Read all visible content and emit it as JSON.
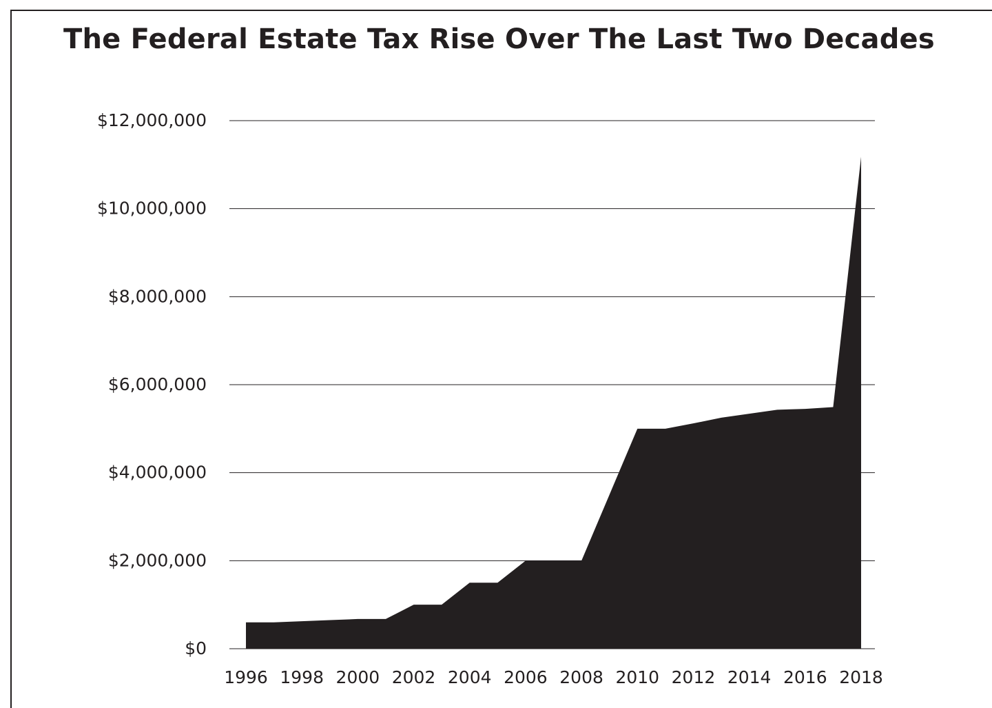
{
  "chart_data": {
    "type": "area",
    "title": "The Federal Estate Tax Rise Over The Last Two Decades",
    "xlabel": "",
    "ylabel": "",
    "x": [
      1996,
      1997,
      1998,
      1999,
      2000,
      2001,
      2002,
      2003,
      2004,
      2005,
      2006,
      2007,
      2008,
      2009,
      2010,
      2011,
      2012,
      2013,
      2014,
      2015,
      2016,
      2017,
      2018
    ],
    "values": [
      600000,
      600000,
      625000,
      650000,
      675000,
      675000,
      1000000,
      1000000,
      1500000,
      1500000,
      2000000,
      2000000,
      2000000,
      3500000,
      5000000,
      5000000,
      5120000,
      5250000,
      5340000,
      5430000,
      5450000,
      5490000,
      11180000
    ],
    "x_ticks": [
      "1996",
      "1998",
      "2000",
      "2002",
      "2004",
      "2006",
      "2008",
      "2010",
      "2012",
      "2014",
      "2016",
      "2018"
    ],
    "y_ticks": [
      {
        "value": 0,
        "label": "$0"
      },
      {
        "value": 2000000,
        "label": "$2,000,000"
      },
      {
        "value": 4000000,
        "label": "$4,000,000"
      },
      {
        "value": 6000000,
        "label": "$6,000,000"
      },
      {
        "value": 8000000,
        "label": "$8,000,000"
      },
      {
        "value": 10000000,
        "label": "$10,000,000"
      },
      {
        "value": 12000000,
        "label": "$12,000,000"
      }
    ],
    "xlim": [
      1996,
      2018
    ],
    "ylim": [
      0,
      12000000
    ],
    "grid": true,
    "legend": "none",
    "colors": {
      "fill": "#231f20",
      "grid": "#231f20",
      "text": "#231f20",
      "border": "#231f20"
    }
  }
}
